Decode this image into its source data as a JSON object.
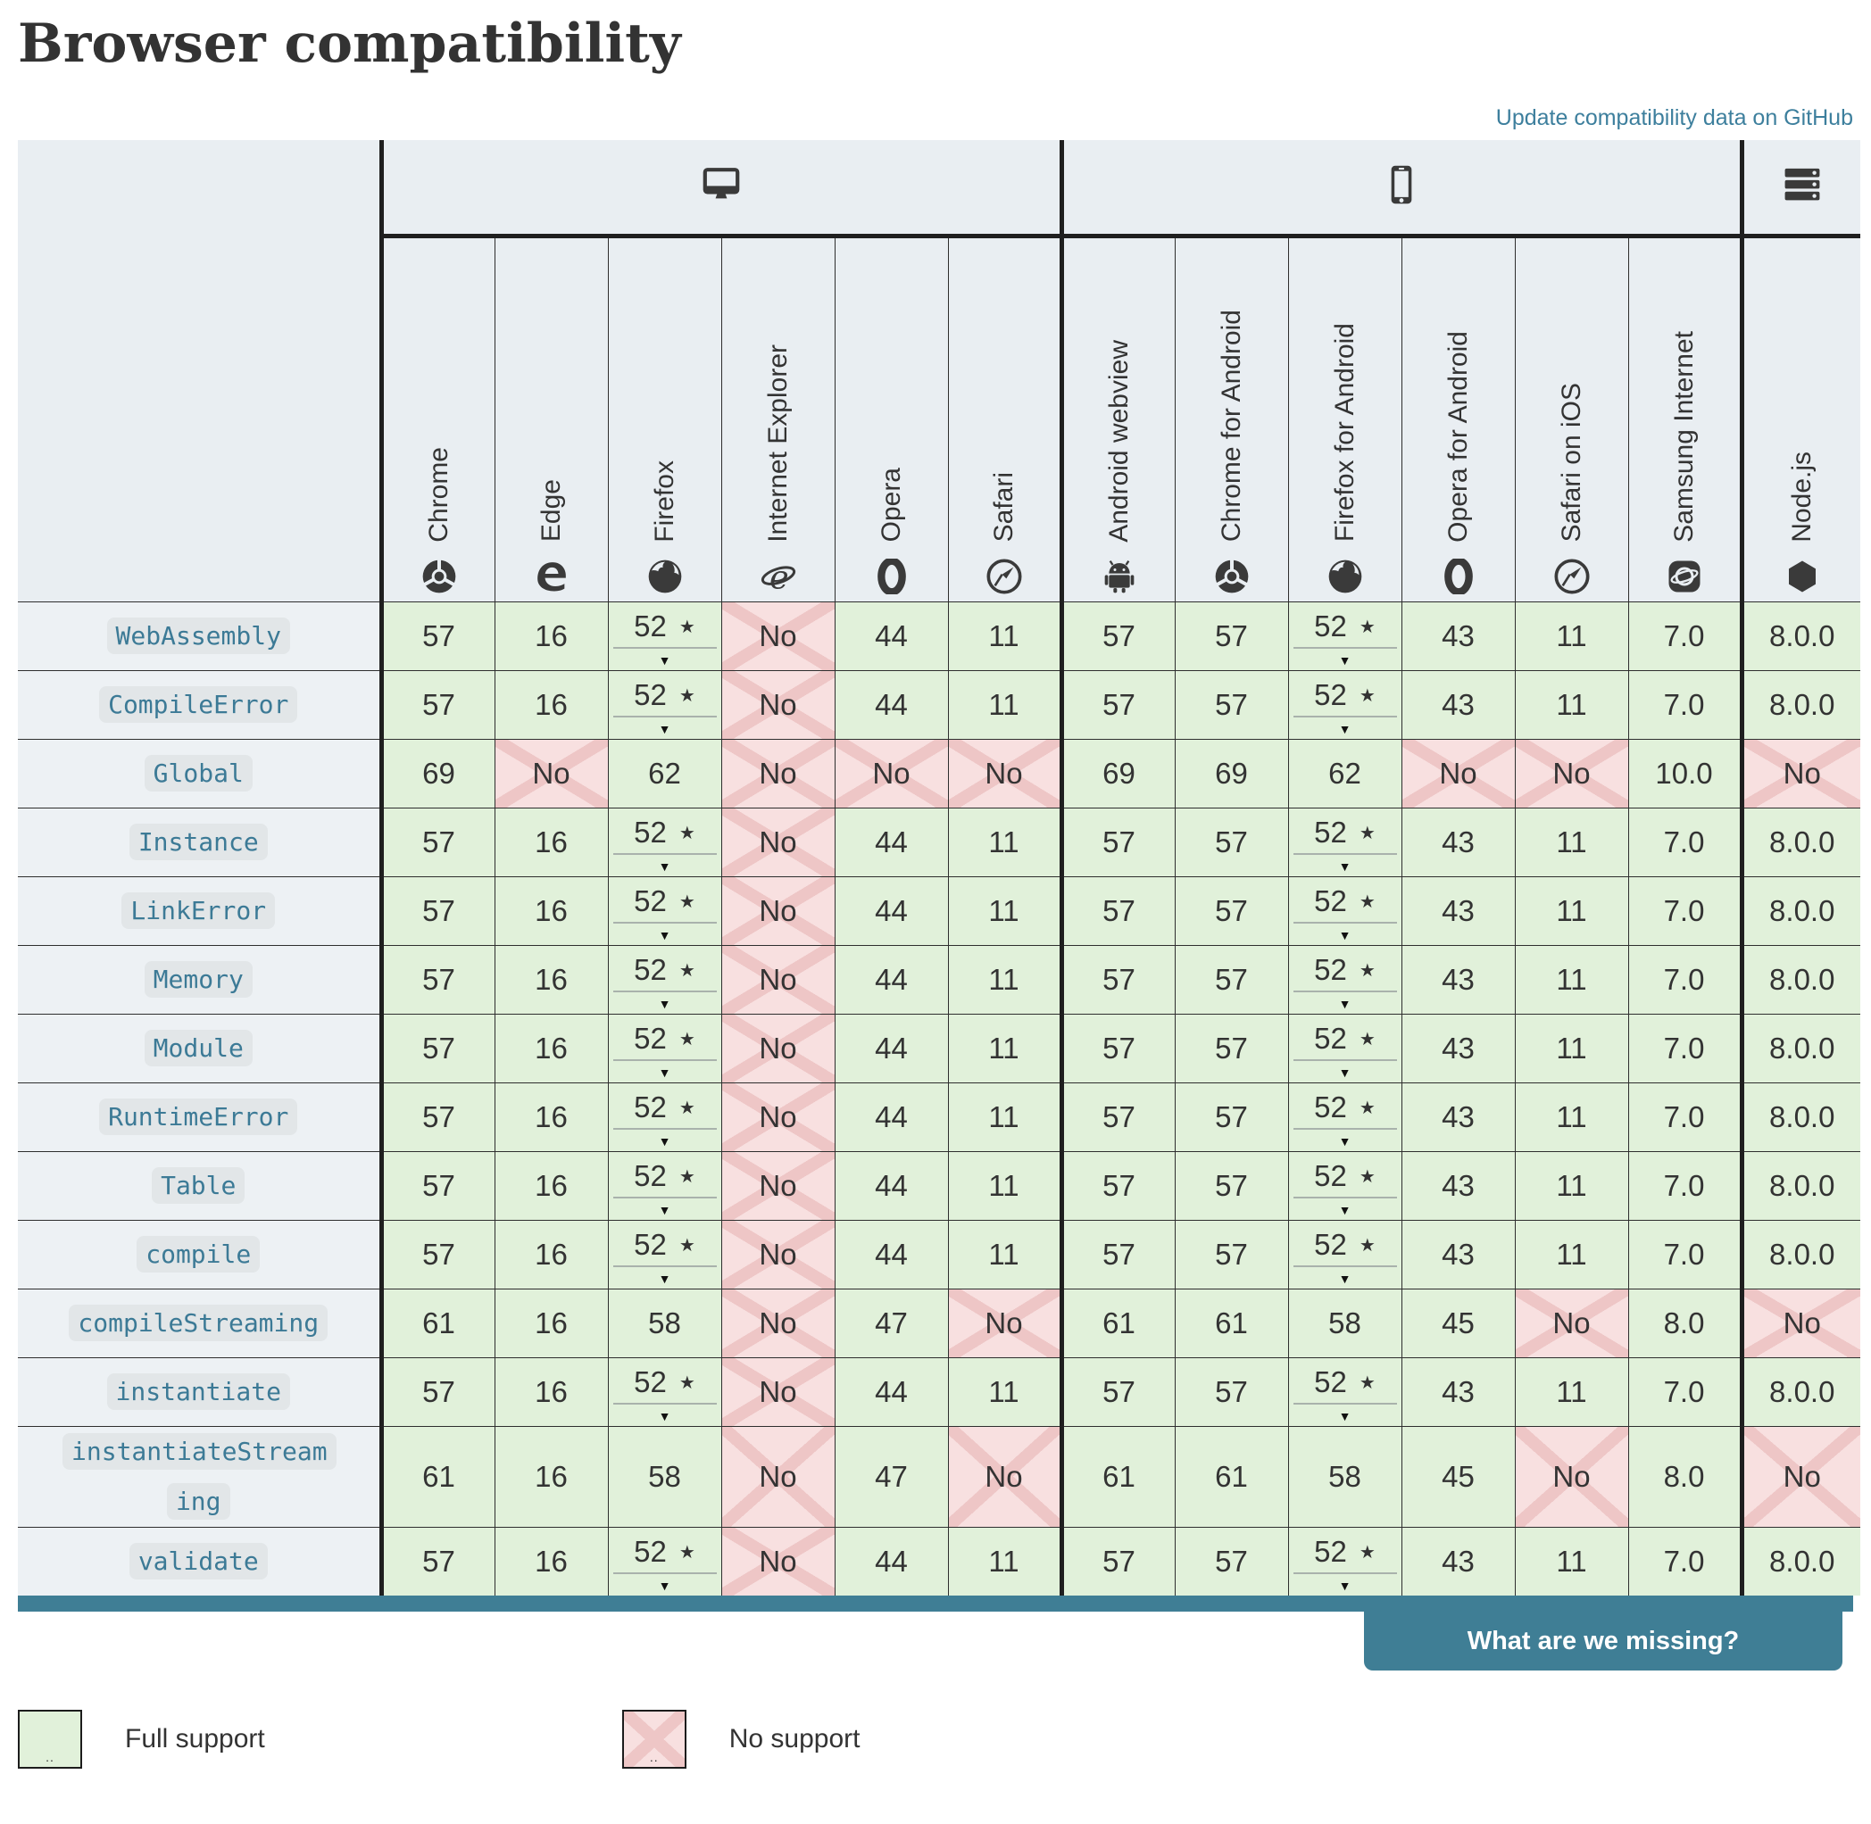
{
  "header": {
    "title": "Browser compatibility",
    "update_link": "Update compatibility data on GitHub"
  },
  "table": {
    "platform_groups": [
      {
        "id": "desktop",
        "icon": "desktop-icon",
        "span": 6
      },
      {
        "id": "mobile",
        "icon": "mobile-icon",
        "span": 6
      },
      {
        "id": "server",
        "icon": "server-icon",
        "span": 1
      }
    ],
    "columns": [
      {
        "label": "Chrome",
        "icon": "chrome-icon"
      },
      {
        "label": "Edge",
        "icon": "edge-icon"
      },
      {
        "label": "Firefox",
        "icon": "firefox-icon"
      },
      {
        "label": "Internet Explorer",
        "icon": "internet-explorer-icon"
      },
      {
        "label": "Opera",
        "icon": "opera-icon"
      },
      {
        "label": "Safari",
        "icon": "safari-icon"
      },
      {
        "label": "Android webview",
        "icon": "android-icon"
      },
      {
        "label": "Chrome for Android",
        "icon": "chrome-icon"
      },
      {
        "label": "Firefox for Android",
        "icon": "firefox-icon"
      },
      {
        "label": "Opera for Android",
        "icon": "opera-icon"
      },
      {
        "label": "Safari on iOS",
        "icon": "safari-icon"
      },
      {
        "label": "Samsung Internet",
        "icon": "samsung-internet-icon"
      },
      {
        "label": "Node.js",
        "icon": "nodejs-icon"
      }
    ],
    "rows": [
      {
        "label": "WebAssembly",
        "cells": [
          {
            "text": "57",
            "support": "full"
          },
          {
            "text": "16",
            "support": "full"
          },
          {
            "text": "52",
            "support": "full",
            "note": true
          },
          {
            "text": "No",
            "support": "none"
          },
          {
            "text": "44",
            "support": "full"
          },
          {
            "text": "11",
            "support": "full"
          },
          {
            "text": "57",
            "support": "full"
          },
          {
            "text": "57",
            "support": "full"
          },
          {
            "text": "52",
            "support": "full",
            "note": true
          },
          {
            "text": "43",
            "support": "full"
          },
          {
            "text": "11",
            "support": "full"
          },
          {
            "text": "7.0",
            "support": "full"
          },
          {
            "text": "8.0.0",
            "support": "full"
          }
        ]
      },
      {
        "label": "CompileError",
        "cells": [
          {
            "text": "57",
            "support": "full"
          },
          {
            "text": "16",
            "support": "full"
          },
          {
            "text": "52",
            "support": "full",
            "note": true
          },
          {
            "text": "No",
            "support": "none"
          },
          {
            "text": "44",
            "support": "full"
          },
          {
            "text": "11",
            "support": "full"
          },
          {
            "text": "57",
            "support": "full"
          },
          {
            "text": "57",
            "support": "full"
          },
          {
            "text": "52",
            "support": "full",
            "note": true
          },
          {
            "text": "43",
            "support": "full"
          },
          {
            "text": "11",
            "support": "full"
          },
          {
            "text": "7.0",
            "support": "full"
          },
          {
            "text": "8.0.0",
            "support": "full"
          }
        ]
      },
      {
        "label": "Global",
        "cells": [
          {
            "text": "69",
            "support": "full"
          },
          {
            "text": "No",
            "support": "none"
          },
          {
            "text": "62",
            "support": "full"
          },
          {
            "text": "No",
            "support": "none"
          },
          {
            "text": "No",
            "support": "none"
          },
          {
            "text": "No",
            "support": "none"
          },
          {
            "text": "69",
            "support": "full"
          },
          {
            "text": "69",
            "support": "full"
          },
          {
            "text": "62",
            "support": "full"
          },
          {
            "text": "No",
            "support": "none"
          },
          {
            "text": "No",
            "support": "none"
          },
          {
            "text": "10.0",
            "support": "full"
          },
          {
            "text": "No",
            "support": "none"
          }
        ]
      },
      {
        "label": "Instance",
        "cells": [
          {
            "text": "57",
            "support": "full"
          },
          {
            "text": "16",
            "support": "full"
          },
          {
            "text": "52",
            "support": "full",
            "note": true
          },
          {
            "text": "No",
            "support": "none"
          },
          {
            "text": "44",
            "support": "full"
          },
          {
            "text": "11",
            "support": "full"
          },
          {
            "text": "57",
            "support": "full"
          },
          {
            "text": "57",
            "support": "full"
          },
          {
            "text": "52",
            "support": "full",
            "note": true
          },
          {
            "text": "43",
            "support": "full"
          },
          {
            "text": "11",
            "support": "full"
          },
          {
            "text": "7.0",
            "support": "full"
          },
          {
            "text": "8.0.0",
            "support": "full"
          }
        ]
      },
      {
        "label": "LinkError",
        "cells": [
          {
            "text": "57",
            "support": "full"
          },
          {
            "text": "16",
            "support": "full"
          },
          {
            "text": "52",
            "support": "full",
            "note": true
          },
          {
            "text": "No",
            "support": "none"
          },
          {
            "text": "44",
            "support": "full"
          },
          {
            "text": "11",
            "support": "full"
          },
          {
            "text": "57",
            "support": "full"
          },
          {
            "text": "57",
            "support": "full"
          },
          {
            "text": "52",
            "support": "full",
            "note": true
          },
          {
            "text": "43",
            "support": "full"
          },
          {
            "text": "11",
            "support": "full"
          },
          {
            "text": "7.0",
            "support": "full"
          },
          {
            "text": "8.0.0",
            "support": "full"
          }
        ]
      },
      {
        "label": "Memory",
        "cells": [
          {
            "text": "57",
            "support": "full"
          },
          {
            "text": "16",
            "support": "full"
          },
          {
            "text": "52",
            "support": "full",
            "note": true
          },
          {
            "text": "No",
            "support": "none"
          },
          {
            "text": "44",
            "support": "full"
          },
          {
            "text": "11",
            "support": "full"
          },
          {
            "text": "57",
            "support": "full"
          },
          {
            "text": "57",
            "support": "full"
          },
          {
            "text": "52",
            "support": "full",
            "note": true
          },
          {
            "text": "43",
            "support": "full"
          },
          {
            "text": "11",
            "support": "full"
          },
          {
            "text": "7.0",
            "support": "full"
          },
          {
            "text": "8.0.0",
            "support": "full"
          }
        ]
      },
      {
        "label": "Module",
        "cells": [
          {
            "text": "57",
            "support": "full"
          },
          {
            "text": "16",
            "support": "full"
          },
          {
            "text": "52",
            "support": "full",
            "note": true
          },
          {
            "text": "No",
            "support": "none"
          },
          {
            "text": "44",
            "support": "full"
          },
          {
            "text": "11",
            "support": "full"
          },
          {
            "text": "57",
            "support": "full"
          },
          {
            "text": "57",
            "support": "full"
          },
          {
            "text": "52",
            "support": "full",
            "note": true
          },
          {
            "text": "43",
            "support": "full"
          },
          {
            "text": "11",
            "support": "full"
          },
          {
            "text": "7.0",
            "support": "full"
          },
          {
            "text": "8.0.0",
            "support": "full"
          }
        ]
      },
      {
        "label": "RuntimeError",
        "cells": [
          {
            "text": "57",
            "support": "full"
          },
          {
            "text": "16",
            "support": "full"
          },
          {
            "text": "52",
            "support": "full",
            "note": true
          },
          {
            "text": "No",
            "support": "none"
          },
          {
            "text": "44",
            "support": "full"
          },
          {
            "text": "11",
            "support": "full"
          },
          {
            "text": "57",
            "support": "full"
          },
          {
            "text": "57",
            "support": "full"
          },
          {
            "text": "52",
            "support": "full",
            "note": true
          },
          {
            "text": "43",
            "support": "full"
          },
          {
            "text": "11",
            "support": "full"
          },
          {
            "text": "7.0",
            "support": "full"
          },
          {
            "text": "8.0.0",
            "support": "full"
          }
        ]
      },
      {
        "label": "Table",
        "cells": [
          {
            "text": "57",
            "support": "full"
          },
          {
            "text": "16",
            "support": "full"
          },
          {
            "text": "52",
            "support": "full",
            "note": true
          },
          {
            "text": "No",
            "support": "none"
          },
          {
            "text": "44",
            "support": "full"
          },
          {
            "text": "11",
            "support": "full"
          },
          {
            "text": "57",
            "support": "full"
          },
          {
            "text": "57",
            "support": "full"
          },
          {
            "text": "52",
            "support": "full",
            "note": true
          },
          {
            "text": "43",
            "support": "full"
          },
          {
            "text": "11",
            "support": "full"
          },
          {
            "text": "7.0",
            "support": "full"
          },
          {
            "text": "8.0.0",
            "support": "full"
          }
        ]
      },
      {
        "label": "compile",
        "cells": [
          {
            "text": "57",
            "support": "full"
          },
          {
            "text": "16",
            "support": "full"
          },
          {
            "text": "52",
            "support": "full",
            "note": true
          },
          {
            "text": "No",
            "support": "none"
          },
          {
            "text": "44",
            "support": "full"
          },
          {
            "text": "11",
            "support": "full"
          },
          {
            "text": "57",
            "support": "full"
          },
          {
            "text": "57",
            "support": "full"
          },
          {
            "text": "52",
            "support": "full",
            "note": true
          },
          {
            "text": "43",
            "support": "full"
          },
          {
            "text": "11",
            "support": "full"
          },
          {
            "text": "7.0",
            "support": "full"
          },
          {
            "text": "8.0.0",
            "support": "full"
          }
        ]
      },
      {
        "label": "compileStreaming",
        "cells": [
          {
            "text": "61",
            "support": "full"
          },
          {
            "text": "16",
            "support": "full"
          },
          {
            "text": "58",
            "support": "full"
          },
          {
            "text": "No",
            "support": "none"
          },
          {
            "text": "47",
            "support": "full"
          },
          {
            "text": "No",
            "support": "none"
          },
          {
            "text": "61",
            "support": "full"
          },
          {
            "text": "61",
            "support": "full"
          },
          {
            "text": "58",
            "support": "full"
          },
          {
            "text": "45",
            "support": "full"
          },
          {
            "text": "No",
            "support": "none"
          },
          {
            "text": "8.0",
            "support": "full"
          },
          {
            "text": "No",
            "support": "none"
          }
        ]
      },
      {
        "label": "instantiate",
        "cells": [
          {
            "text": "57",
            "support": "full"
          },
          {
            "text": "16",
            "support": "full"
          },
          {
            "text": "52",
            "support": "full",
            "note": true
          },
          {
            "text": "No",
            "support": "none"
          },
          {
            "text": "44",
            "support": "full"
          },
          {
            "text": "11",
            "support": "full"
          },
          {
            "text": "57",
            "support": "full"
          },
          {
            "text": "57",
            "support": "full"
          },
          {
            "text": "52",
            "support": "full",
            "note": true
          },
          {
            "text": "43",
            "support": "full"
          },
          {
            "text": "11",
            "support": "full"
          },
          {
            "text": "7.0",
            "support": "full"
          },
          {
            "text": "8.0.0",
            "support": "full"
          }
        ]
      },
      {
        "label": "instantiateStreaming",
        "cells": [
          {
            "text": "61",
            "support": "full"
          },
          {
            "text": "16",
            "support": "full"
          },
          {
            "text": "58",
            "support": "full"
          },
          {
            "text": "No",
            "support": "none"
          },
          {
            "text": "47",
            "support": "full"
          },
          {
            "text": "No",
            "support": "none"
          },
          {
            "text": "61",
            "support": "full"
          },
          {
            "text": "61",
            "support": "full"
          },
          {
            "text": "58",
            "support": "full"
          },
          {
            "text": "45",
            "support": "full"
          },
          {
            "text": "No",
            "support": "none"
          },
          {
            "text": "8.0",
            "support": "full"
          },
          {
            "text": "No",
            "support": "none"
          }
        ]
      },
      {
        "label": "validate",
        "cells": [
          {
            "text": "57",
            "support": "full"
          },
          {
            "text": "16",
            "support": "full"
          },
          {
            "text": "52",
            "support": "full",
            "note": true
          },
          {
            "text": "No",
            "support": "none"
          },
          {
            "text": "44",
            "support": "full"
          },
          {
            "text": "11",
            "support": "full"
          },
          {
            "text": "57",
            "support": "full"
          },
          {
            "text": "57",
            "support": "full"
          },
          {
            "text": "52",
            "support": "full",
            "note": true
          },
          {
            "text": "43",
            "support": "full"
          },
          {
            "text": "11",
            "support": "full"
          },
          {
            "text": "7.0",
            "support": "full"
          },
          {
            "text": "8.0.0",
            "support": "full"
          }
        ]
      }
    ]
  },
  "footer": {
    "missing_button": "What are we missing?"
  },
  "legend": {
    "items": [
      {
        "label": "Full support",
        "type": "full",
        "sample": ".."
      },
      {
        "label": "No support",
        "type": "none",
        "sample": ".."
      }
    ]
  },
  "colors": {
    "accent_teal": "#3f7e95",
    "link": "#3d7f9d",
    "full_support_bg": "#e1f1da",
    "no_support_bg": "#f8e0e0",
    "no_support_x": "#eec6c6",
    "code_label": "#3c7a96"
  }
}
